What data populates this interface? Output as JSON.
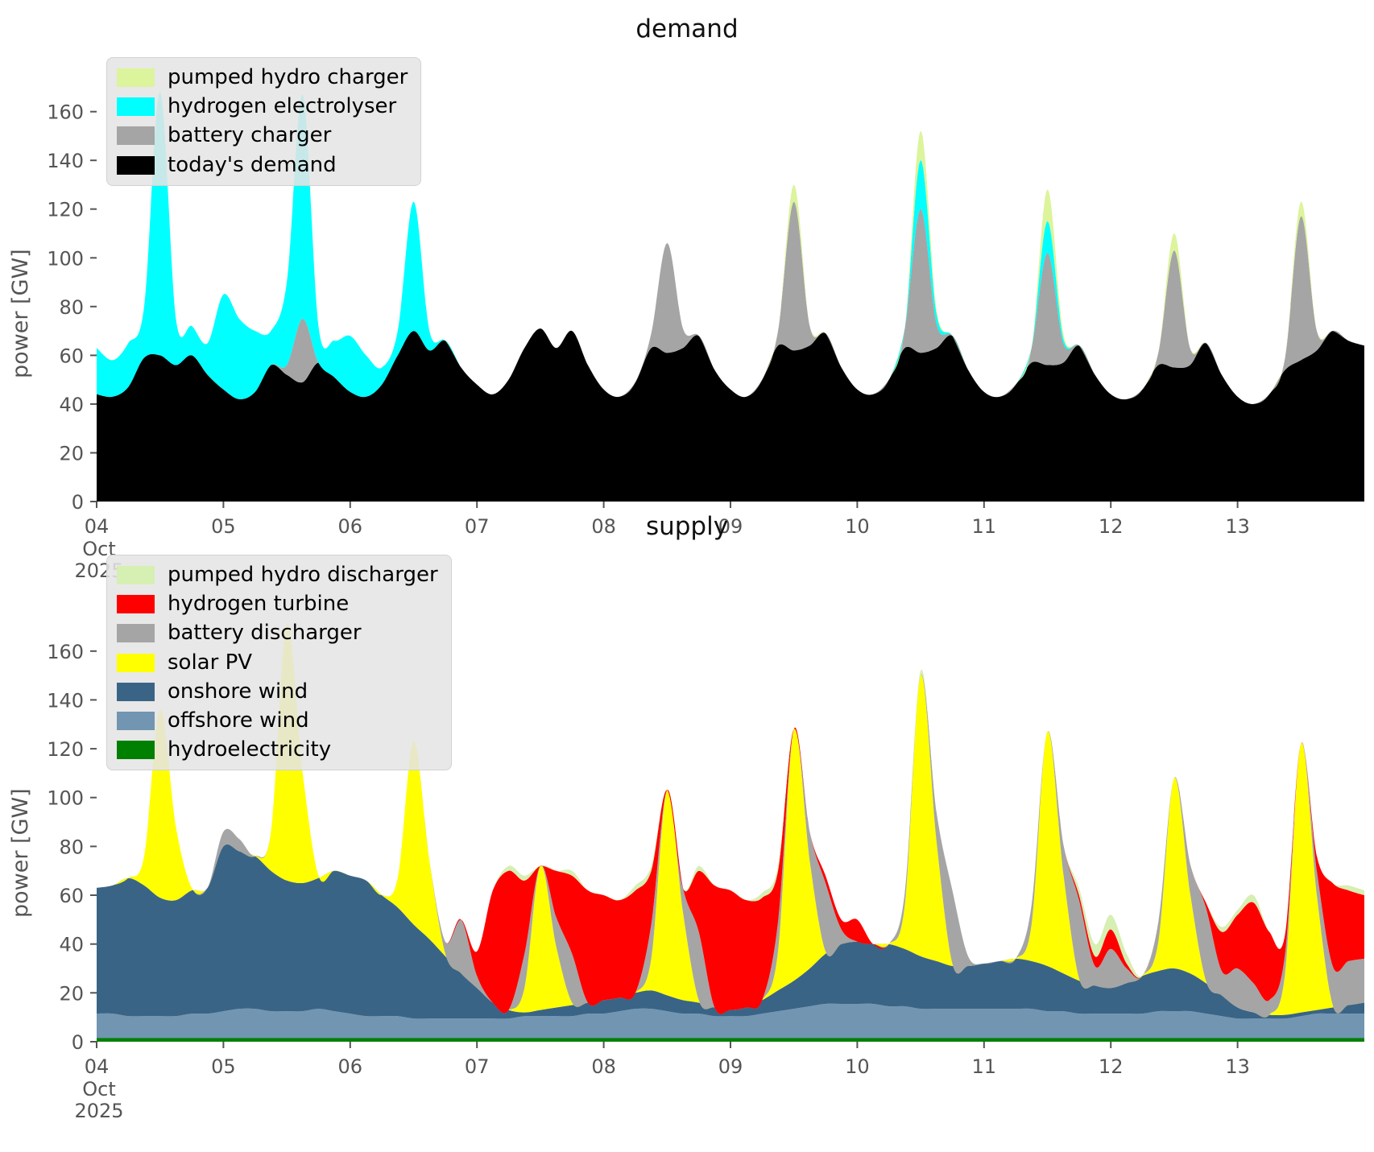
{
  "figure": {
    "background": "#ffffff",
    "tick_color": "#555555"
  },
  "chart_data": [
    {
      "type": "area",
      "stacked": true,
      "title": "demand",
      "ylabel": "power [GW]",
      "ylim": [
        0,
        184
      ],
      "y_ticks": [
        0,
        20,
        40,
        60,
        80,
        100,
        120,
        140,
        160
      ],
      "x_start": "2025-10-04 00:00",
      "x_step_hours": 3,
      "x_tick_labels": [
        "04",
        "05",
        "06",
        "07",
        "08",
        "09",
        "10",
        "11",
        "12",
        "13"
      ],
      "x_origin_sublabels": [
        "Oct",
        "2025"
      ],
      "legend_order": [
        "pumped hydro charger",
        "hydrogen electrolyser",
        "battery charger",
        "today's demand"
      ],
      "series": [
        {
          "name": "today's demand",
          "color": "#000000",
          "values": [
            44,
            43,
            47,
            59,
            60,
            56,
            60,
            52,
            46,
            42,
            45,
            56,
            52,
            49,
            57,
            51,
            45,
            43,
            48,
            60,
            70,
            62,
            66,
            55,
            48,
            44,
            50,
            63,
            71,
            63,
            70,
            56,
            46,
            43,
            49,
            63,
            61,
            63,
            68,
            54,
            46,
            43,
            50,
            64,
            62,
            64,
            69,
            55,
            46,
            44,
            50,
            63,
            61,
            63,
            68,
            54,
            45,
            43,
            48,
            57,
            56,
            57,
            64,
            52,
            44,
            42,
            46,
            56,
            55,
            56,
            65,
            52,
            43,
            40,
            44,
            54,
            58,
            62,
            70,
            66,
            64
          ]
        },
        {
          "name": "battery charger",
          "color": "#a5a5a5",
          "values": [
            0,
            0,
            0,
            0,
            0,
            0,
            0,
            0,
            0,
            0,
            0,
            0,
            4,
            26,
            0,
            0,
            0,
            0,
            0,
            0,
            0,
            0,
            0,
            0,
            0,
            0,
            0,
            0,
            0,
            0,
            0,
            0,
            0,
            0,
            0,
            6,
            45,
            8,
            0,
            0,
            0,
            0,
            0,
            6,
            61,
            8,
            0,
            0,
            0,
            0,
            0,
            8,
            59,
            10,
            0,
            0,
            0,
            0,
            0,
            6,
            46,
            8,
            0,
            0,
            0,
            0,
            0,
            5,
            48,
            7,
            0,
            0,
            0,
            0,
            0,
            5,
            59,
            8,
            0,
            0,
            0
          ]
        },
        {
          "name": "hydrogen electrolyser",
          "color": "#00ffff",
          "values": [
            19,
            15,
            18,
            21,
            108,
            19,
            12,
            13,
            39,
            33,
            25,
            14,
            34,
            92,
            15,
            15,
            23,
            17,
            7,
            10,
            53,
            8,
            0,
            0,
            0,
            0,
            0,
            0,
            0,
            0,
            0,
            0,
            0,
            0,
            0,
            0,
            0,
            0,
            0,
            0,
            0,
            0,
            0,
            0,
            0,
            0,
            0,
            0,
            0,
            0,
            0,
            0,
            20,
            4,
            0,
            0,
            0,
            0,
            0,
            0,
            13,
            2,
            0,
            0,
            0,
            0,
            0,
            0,
            0,
            0,
            0,
            0,
            0,
            0,
            0,
            0,
            0,
            0,
            0,
            0,
            0
          ]
        },
        {
          "name": "pumped hydro charger",
          "color": "#dcf49c",
          "values": [
            0,
            0,
            0,
            0,
            0,
            0,
            0,
            0,
            0,
            0,
            0,
            0,
            0,
            0,
            0,
            0,
            0,
            0,
            0,
            0,
            0,
            0,
            0,
            0,
            0,
            0,
            0,
            0,
            0,
            0,
            0,
            0,
            0,
            0,
            0,
            0,
            0,
            0,
            0,
            0,
            0,
            0,
            0,
            0,
            7,
            0,
            0,
            0,
            0,
            0,
            0,
            0,
            12,
            2,
            0,
            0,
            0,
            0,
            0,
            0,
            13,
            2,
            0,
            0,
            0,
            0,
            0,
            0,
            7,
            0,
            0,
            0,
            0,
            0,
            0,
            0,
            6,
            0,
            0,
            0,
            0
          ]
        }
      ]
    },
    {
      "type": "area",
      "stacked": true,
      "title": "supply",
      "ylabel": "power [GW]",
      "ylim": [
        0,
        184
      ],
      "y_ticks": [
        0,
        20,
        40,
        60,
        80,
        100,
        120,
        140,
        160
      ],
      "x_start": "2025-10-04 00:00",
      "x_step_hours": 3,
      "x_tick_labels": [
        "04",
        "05",
        "06",
        "07",
        "08",
        "09",
        "10",
        "11",
        "12",
        "13"
      ],
      "x_origin_sublabels": [
        "Oct",
        "2025"
      ],
      "legend_order": [
        "pumped hydro discharger",
        "hydrogen turbine",
        "battery discharger",
        "solar PV",
        "onshore wind",
        "offshore wind",
        "hydroelectricity"
      ],
      "series": [
        {
          "name": "hydroelectricity",
          "color": "#008000",
          "values": [
            1.5,
            1.5,
            1.5,
            1.5,
            1.5,
            1.5,
            1.5,
            1.5,
            1.5,
            1.5,
            1.5,
            1.5,
            1.5,
            1.5,
            1.5,
            1.5,
            1.5,
            1.5,
            1.5,
            1.5,
            1.5,
            1.5,
            1.5,
            1.5,
            1.5,
            1.5,
            1.5,
            1.5,
            1.5,
            1.5,
            1.5,
            1.5,
            1.5,
            1.5,
            1.5,
            1.5,
            1.5,
            1.5,
            1.5,
            1.5,
            1.5,
            1.5,
            1.5,
            1.5,
            1.5,
            1.5,
            1.5,
            1.5,
            1.5,
            1.5,
            1.5,
            1.5,
            1.5,
            1.5,
            1.5,
            1.5,
            1.5,
            1.5,
            1.5,
            1.5,
            1.5,
            1.5,
            1.5,
            1.5,
            1.5,
            1.5,
            1.5,
            1.5,
            1.5,
            1.5,
            1.5,
            1.5,
            1.5,
            1.5,
            1.5,
            1.5,
            1.5,
            1.5,
            1.5,
            1.5,
            1.5
          ]
        },
        {
          "name": "offshore wind",
          "color": "#7295b1",
          "values": [
            10,
            10,
            9,
            9,
            9,
            9,
            10,
            10,
            11,
            12,
            12,
            11,
            11,
            11,
            12,
            11,
            10,
            9,
            9,
            9,
            8,
            8,
            8,
            8,
            8,
            8,
            8,
            9,
            9,
            9,
            9,
            10,
            10,
            11,
            12,
            12,
            11,
            10,
            10,
            9,
            9,
            9,
            10,
            11,
            12,
            13,
            14,
            14,
            14,
            14,
            13,
            13,
            12,
            12,
            12,
            12,
            12,
            12,
            12,
            12,
            11,
            11,
            10,
            10,
            10,
            10,
            10,
            11,
            11,
            11,
            10,
            9,
            8,
            8,
            8,
            8,
            9,
            10,
            10,
            10,
            10
          ]
        },
        {
          "name": "onshore wind",
          "color": "#3a6486",
          "values": [
            51.5,
            52.5,
            56.5,
            53.5,
            48.5,
            47.5,
            50.5,
            51.5,
            67.5,
            64.5,
            62.5,
            57.5,
            53.5,
            52.5,
            53.5,
            57.5,
            56.5,
            55.5,
            49.5,
            44.5,
            38.5,
            32.5,
            25.5,
            18.5,
            12.5,
            6.5,
            3.5,
            1.5,
            2.5,
            3.5,
            4.5,
            4.5,
            5.5,
            5.5,
            6.5,
            7.5,
            6.5,
            5.5,
            4.5,
            3.5,
            2.5,
            3.5,
            5.5,
            8.5,
            11.5,
            15.5,
            20.5,
            24.5,
            25.5,
            24.5,
            25.5,
            23.5,
            21.5,
            19.5,
            17.5,
            17.5,
            18.5,
            19.5,
            20.5,
            19.5,
            18.5,
            15.5,
            13.5,
            11.5,
            10.5,
            12.5,
            15.5,
            16.5,
            17.5,
            15.5,
            12.5,
            8.5,
            4.5,
            2.5,
            1.5,
            1.5,
            1.5,
            1.5,
            2.5,
            3.5,
            4.5
          ]
        },
        {
          "name": "solar PV",
          "color": "#ffff00",
          "values": [
            0,
            0,
            0,
            12,
            77,
            30,
            1,
            0,
            0,
            0,
            0,
            16,
            105,
            45,
            1,
            0,
            0,
            0,
            0,
            12,
            75,
            32,
            1,
            0,
            0,
            0,
            0,
            10,
            59,
            25,
            1,
            0,
            0,
            0,
            0,
            13,
            84,
            36,
            1,
            0,
            0,
            0,
            0,
            16,
            103,
            44,
            1,
            0,
            0,
            0,
            0,
            18,
            115,
            49,
            1,
            0,
            0,
            0,
            0,
            15,
            96,
            41,
            1,
            0,
            0,
            0,
            0,
            12,
            78,
            33,
            1,
            0,
            0,
            0,
            0,
            17,
            110,
            47,
            1,
            0,
            0
          ]
        },
        {
          "name": "battery discharger",
          "color": "#a5a5a5",
          "values": [
            0,
            0,
            0,
            0,
            0,
            0,
            0,
            0,
            6,
            5,
            0,
            0,
            0,
            0,
            0,
            0,
            0,
            0,
            0,
            0,
            0,
            0,
            5,
            22,
            5,
            0,
            0,
            14,
            0,
            12,
            20,
            0,
            0,
            0,
            0,
            14,
            0,
            10,
            28,
            0,
            0,
            0,
            0,
            12,
            0,
            12,
            28,
            6,
            0,
            0,
            0,
            5,
            0,
            12,
            30,
            4,
            0,
            0,
            0,
            8,
            0,
            12,
            32,
            8,
            16,
            6,
            0,
            8,
            0,
            12,
            30,
            10,
            16,
            12,
            6,
            8,
            0,
            10,
            16,
            18,
            18
          ]
        },
        {
          "name": "hydrogen turbine",
          "color": "#ff0000",
          "values": [
            0,
            0,
            0,
            0,
            0,
            0,
            0,
            0,
            0,
            0,
            0,
            0,
            0,
            0,
            0,
            0,
            0,
            0,
            0,
            0,
            0,
            0,
            0,
            0,
            10,
            46,
            57,
            30,
            0,
            19,
            32,
            46,
            43,
            40,
            42,
            22,
            0,
            0,
            25,
            50,
            49,
            44,
            42,
            21,
            0,
            0,
            3,
            4,
            9,
            0,
            0,
            0,
            0,
            0,
            0,
            0,
            0,
            0,
            0,
            0,
            0,
            0,
            2,
            4,
            8,
            2,
            0,
            0,
            0,
            0,
            2,
            16,
            22,
            33,
            28,
            8,
            0,
            6,
            34,
            29,
            26
          ]
        },
        {
          "name": "pumped hydro discharger",
          "color": "#d6efb3",
          "values": [
            0,
            0,
            0,
            0,
            0,
            0,
            0,
            0,
            0,
            0,
            0,
            0,
            0,
            0,
            0,
            0,
            0,
            0,
            0,
            0,
            0,
            0,
            0,
            0,
            0,
            0,
            2,
            2,
            0,
            0,
            2,
            0,
            0,
            0,
            2,
            2,
            0,
            0,
            2,
            0,
            0,
            0,
            2,
            2,
            0,
            0,
            0,
            0,
            0,
            0,
            0,
            0,
            2,
            0,
            0,
            0,
            0,
            0,
            0,
            0,
            0,
            0,
            3,
            5,
            6,
            4,
            0,
            0,
            0,
            0,
            0,
            2,
            2,
            3,
            0,
            0,
            0,
            0,
            0,
            2,
            2
          ]
        }
      ]
    }
  ]
}
